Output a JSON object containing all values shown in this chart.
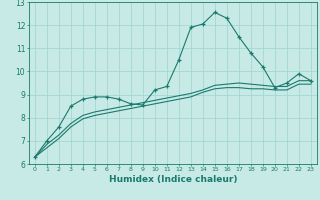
{
  "xlabel": "Humidex (Indice chaleur)",
  "xlim": [
    -0.5,
    23.5
  ],
  "ylim": [
    6,
    13
  ],
  "xticks": [
    0,
    1,
    2,
    3,
    4,
    5,
    6,
    7,
    8,
    9,
    10,
    11,
    12,
    13,
    14,
    15,
    16,
    17,
    18,
    19,
    20,
    21,
    22,
    23
  ],
  "yticks": [
    6,
    7,
    8,
    9,
    10,
    11,
    12,
    13
  ],
  "bg_color": "#c8eae6",
  "line_color": "#1a7a6e",
  "grid_color": "#9dd4ce",
  "line1_x": [
    0,
    1,
    2,
    3,
    4,
    5,
    6,
    7,
    8,
    9,
    10,
    11,
    12,
    13,
    14,
    15,
    16,
    17,
    18,
    19,
    20,
    21,
    22,
    23
  ],
  "line1_y": [
    6.3,
    7.0,
    7.6,
    8.5,
    8.8,
    8.9,
    8.9,
    8.8,
    8.6,
    8.55,
    9.2,
    9.35,
    10.5,
    11.9,
    12.05,
    12.55,
    12.3,
    11.5,
    10.8,
    10.2,
    9.3,
    9.5,
    9.9,
    9.6
  ],
  "line2_x": [
    0,
    1,
    2,
    3,
    4,
    5,
    6,
    7,
    8,
    9,
    10,
    11,
    12,
    13,
    14,
    15,
    16,
    17,
    18,
    19,
    20,
    21,
    22,
    23
  ],
  "line2_y": [
    6.3,
    6.85,
    7.25,
    7.75,
    8.1,
    8.25,
    8.35,
    8.45,
    8.55,
    8.65,
    8.75,
    8.85,
    8.95,
    9.05,
    9.2,
    9.4,
    9.45,
    9.5,
    9.45,
    9.4,
    9.35,
    9.35,
    9.6,
    9.6
  ],
  "line3_x": [
    0,
    1,
    2,
    3,
    4,
    5,
    6,
    7,
    8,
    9,
    10,
    11,
    12,
    13,
    14,
    15,
    16,
    17,
    18,
    19,
    20,
    21,
    22,
    23
  ],
  "line3_y": [
    6.3,
    6.7,
    7.1,
    7.6,
    7.95,
    8.1,
    8.2,
    8.3,
    8.4,
    8.5,
    8.6,
    8.7,
    8.8,
    8.9,
    9.1,
    9.25,
    9.3,
    9.3,
    9.25,
    9.25,
    9.2,
    9.2,
    9.45,
    9.45
  ]
}
